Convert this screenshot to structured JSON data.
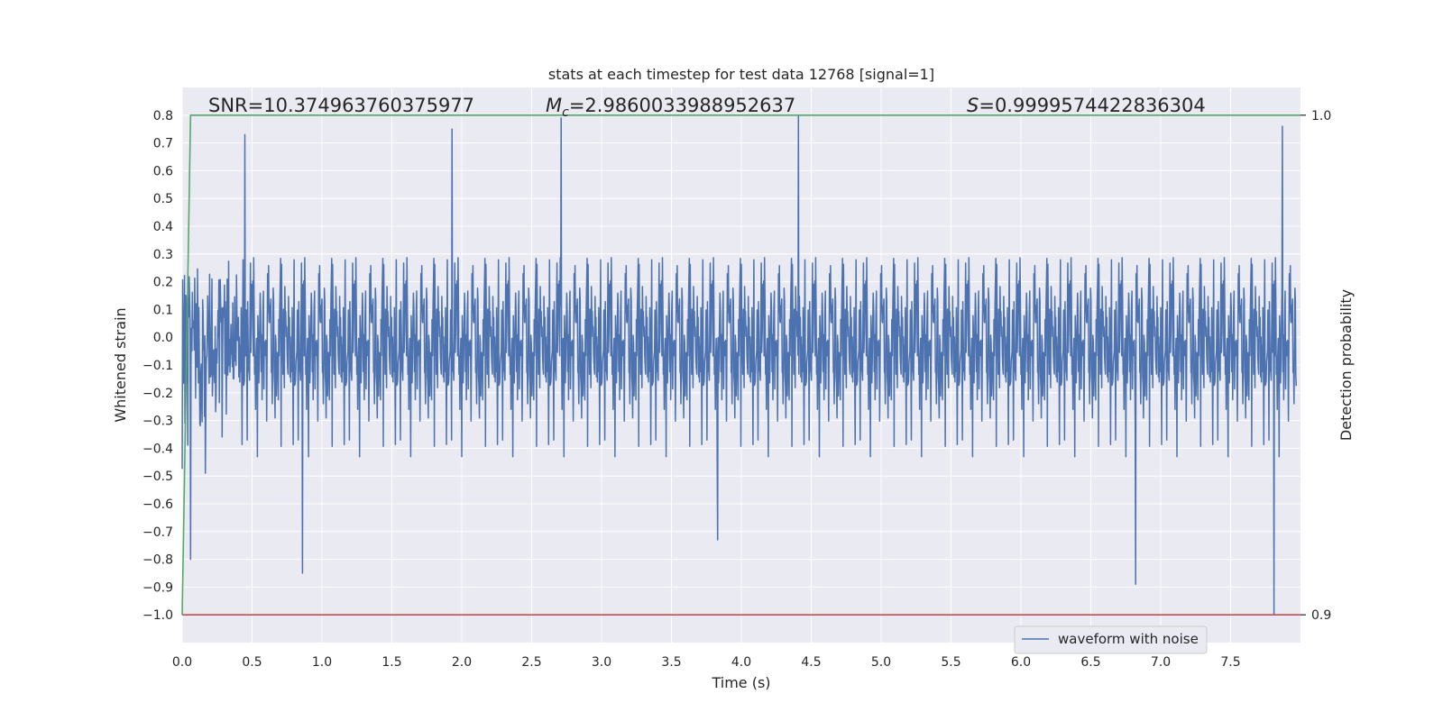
{
  "chart_data": {
    "type": "line",
    "title": "stats at each timestep for test data 12768 [signal=1]",
    "xlabel": "Time (s)",
    "ylabel": "Whitened strain",
    "y2label": "Detection probability",
    "xlim": [
      0.0,
      8.0
    ],
    "ylim": [
      -1.1,
      0.9
    ],
    "y2lim": [
      0.9,
      1.0
    ],
    "x_ticks": [
      "0.0",
      "0.5",
      "1.0",
      "1.5",
      "2.0",
      "2.5",
      "3.0",
      "3.5",
      "4.0",
      "4.5",
      "5.0",
      "5.5",
      "6.0",
      "6.5",
      "7.0",
      "7.5"
    ],
    "y_ticks": [
      "−1.0",
      "−0.9",
      "−0.8",
      "−0.7",
      "−0.6",
      "−0.5",
      "−0.4",
      "−0.3",
      "−0.2",
      "−0.1",
      "0.0",
      "0.1",
      "0.2",
      "0.3",
      "0.4",
      "0.5",
      "0.6",
      "0.7",
      "0.8"
    ],
    "y2_ticks": [
      "0.9",
      "1.0"
    ],
    "grid": true,
    "legend_position": "bottom-right",
    "annotations": {
      "snr": "SNR=10.374963760375977",
      "mc_symbol": "M",
      "mc_sub": "c",
      "mc_value": "=2.9860033988952637",
      "s_symbol": "S",
      "s_value": "=0.9999574422836304"
    },
    "series": [
      {
        "name": "waveform with noise",
        "color": "#4c72b0",
        "description": "whitened strain noise, roughly zero-mean, spanning about -1.0 to 0.8",
        "notable_points": [
          {
            "x": 0.06,
            "y": -0.8
          },
          {
            "x": 0.45,
            "y": 0.73
          },
          {
            "x": 0.86,
            "y": -0.85
          },
          {
            "x": 1.93,
            "y": 0.75
          },
          {
            "x": 2.71,
            "y": 0.79
          },
          {
            "x": 3.83,
            "y": -0.73
          },
          {
            "x": 4.41,
            "y": 0.8
          },
          {
            "x": 6.82,
            "y": -0.89
          },
          {
            "x": 7.81,
            "y": -1.0
          },
          {
            "x": 7.87,
            "y": 0.76
          }
        ]
      },
      {
        "color": "#55a868",
        "axis": "y2",
        "x": [
          0.0,
          0.06,
          0.08,
          8.0
        ],
        "values": [
          0.9,
          1.0,
          1.0,
          1.0
        ]
      },
      {
        "color": "#c44e52",
        "axis": "y",
        "x": [
          0.0,
          8.0
        ],
        "values": [
          -1.0,
          -1.0
        ]
      }
    ]
  }
}
